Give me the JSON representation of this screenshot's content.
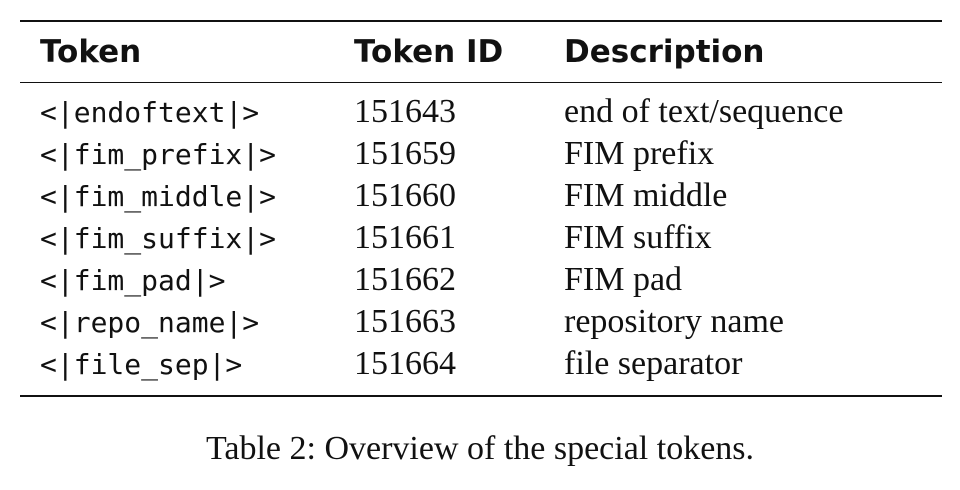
{
  "table": {
    "headers": {
      "token": "Token",
      "token_id": "Token ID",
      "description": "Description"
    },
    "rows": [
      {
        "token": "<|endoftext|>",
        "id": "151643",
        "description": "end of text/sequence"
      },
      {
        "token": "<|fim_prefix|>",
        "id": "151659",
        "description": "FIM prefix"
      },
      {
        "token": "<|fim_middle|>",
        "id": "151660",
        "description": "FIM middle"
      },
      {
        "token": "<|fim_suffix|>",
        "id": "151661",
        "description": "FIM suffix"
      },
      {
        "token": "<|fim_pad|>",
        "id": "151662",
        "description": "FIM pad"
      },
      {
        "token": "<|repo_name|>",
        "id": "151663",
        "description": "repository name"
      },
      {
        "token": "<|file_sep|>",
        "id": "151664",
        "description": "file separator"
      }
    ]
  },
  "caption": "Table 2: Overview of the special tokens."
}
